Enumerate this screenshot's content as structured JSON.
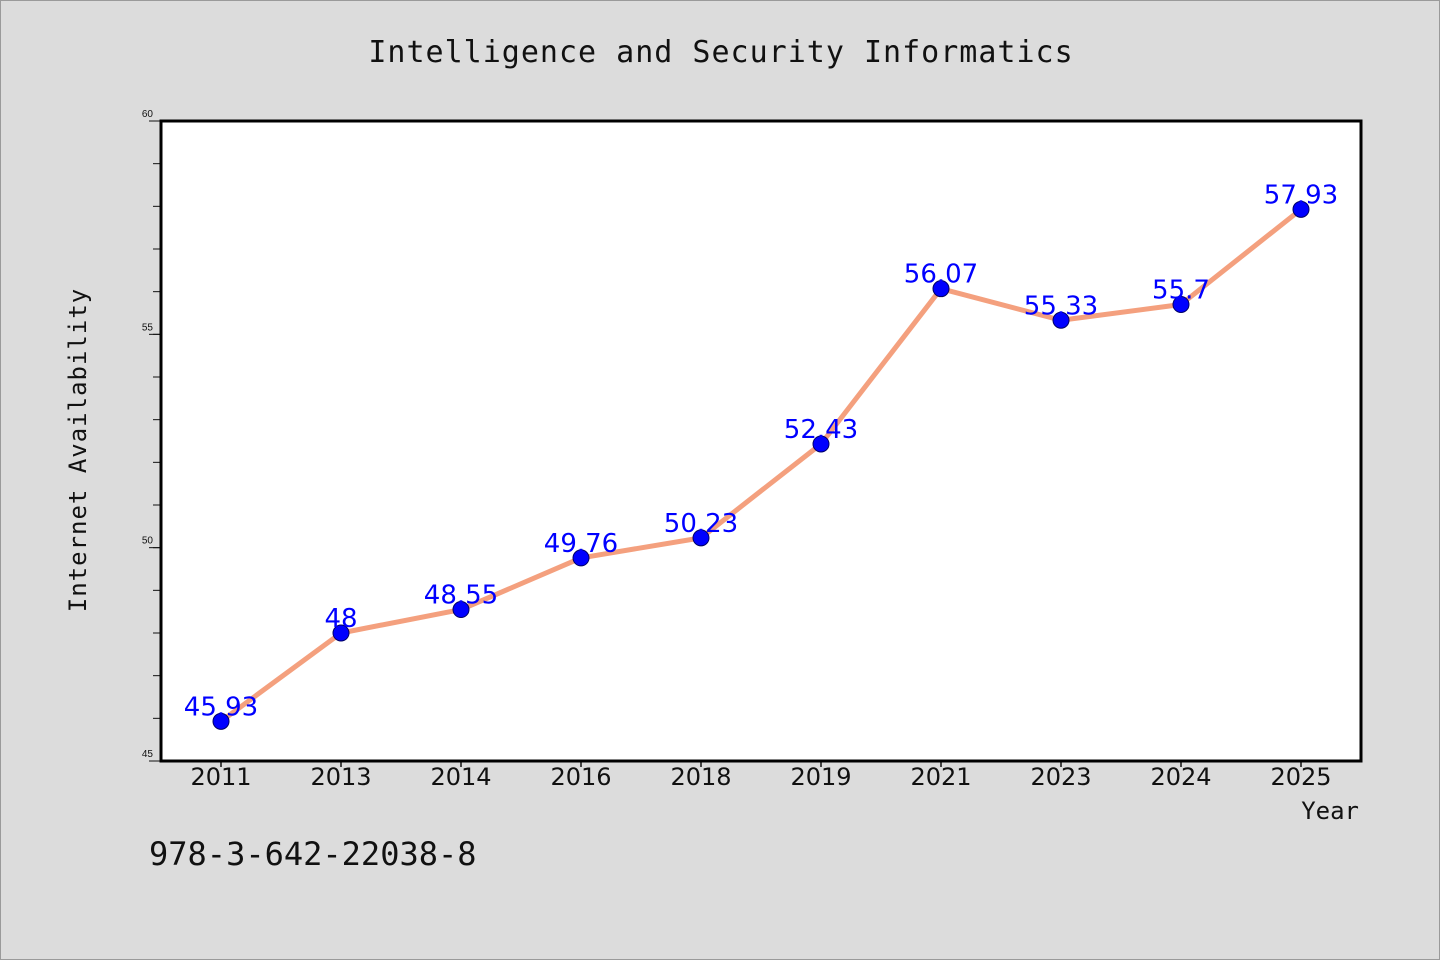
{
  "title": "Intelligence and Security Informatics",
  "footer_text": "978-3-642-22038-8",
  "chart_data": {
    "type": "line",
    "title": "Intelligence and Security Informatics",
    "xlabel": "Year",
    "ylabel": "Internet Availability",
    "categories": [
      "2011",
      "2013",
      "2014",
      "2016",
      "2018",
      "2019",
      "2021",
      "2023",
      "2024",
      "2025"
    ],
    "series": [
      {
        "values": [
          45.93,
          48,
          48.55,
          49.76,
          50.23,
          52.43,
          56.07,
          55.33,
          55.7,
          57.93
        ],
        "labels": [
          "45.93",
          "48",
          "48.55",
          "49.76",
          "50.23",
          "52.43",
          "56.07",
          "55.33",
          "55.7",
          "57.93"
        ]
      }
    ],
    "ylim": [
      45,
      60
    ],
    "yticks": [
      45,
      50,
      55,
      60
    ],
    "grid": false,
    "line_color": "#f4a07e",
    "marker_color": "#0000ff",
    "label_color": "#0000ff"
  }
}
